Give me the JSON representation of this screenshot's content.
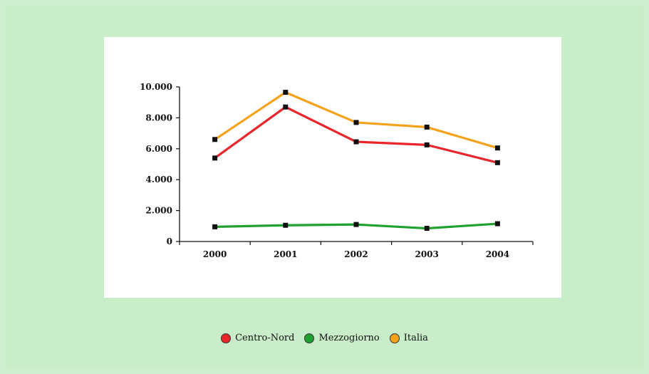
{
  "chart_data": {
    "type": "line",
    "title": "",
    "xlabel": "",
    "ylabel": "",
    "x": [
      "2000",
      "2001",
      "2002",
      "2003",
      "2004"
    ],
    "ylim": [
      0,
      10000
    ],
    "y_ticks": [
      "0",
      "2.000",
      "4.000",
      "6.000",
      "8.000",
      "10.000"
    ],
    "y_tick_values": [
      0,
      2000,
      4000,
      6000,
      8000,
      10000
    ],
    "grid": false,
    "legend_position": "bottom",
    "series": [
      {
        "name": "Centro-Nord",
        "color": "#e8262b",
        "values": [
          5400,
          8700,
          6450,
          6250,
          5100
        ]
      },
      {
        "name": "Mezzogiorno",
        "color": "#1fa12f",
        "values": [
          950,
          1050,
          1100,
          850,
          1150
        ]
      },
      {
        "name": "Italia",
        "color": "#f5a21b",
        "values": [
          6600,
          9650,
          7700,
          7400,
          6050
        ]
      }
    ]
  }
}
